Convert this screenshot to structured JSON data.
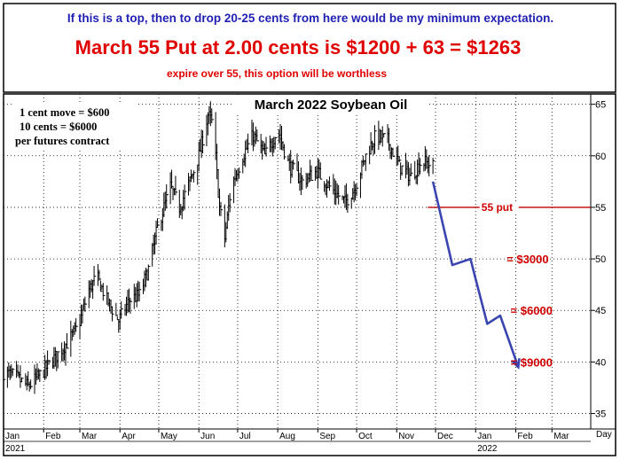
{
  "header": {
    "line1": "If this is a top, then to drop 20-25 cents from here would be my minimum expectation.",
    "line2": "March 55 Put at 2.00 cents is $1200 + 63 = $1263",
    "line3": "expire over 55, this option will be worthless"
  },
  "notes": [
    "1 cent move = $600",
    "10 cents = $6000",
    "per futures contract"
  ],
  "colors": {
    "header_blue": "#1f1fb4",
    "header_red": "#e00000",
    "projection": "#3a45b0",
    "put_line": "#c00000",
    "bars": "#000000"
  },
  "chart_data": {
    "type": "ohlc",
    "title": "March 2022 Soybean Oil",
    "x_axis_label": "Day",
    "x_tick_labels": [
      "Jan",
      "Feb",
      "Mar",
      "Apr",
      "May",
      "Jun",
      "Jul",
      "Aug",
      "Sep",
      "Oct",
      "Nov",
      "Dec",
      "Jan",
      "Feb",
      "Mar"
    ],
    "year_labels": [
      "2021",
      "2022"
    ],
    "y_ticks": [
      35,
      40,
      45,
      50,
      55,
      60,
      65
    ],
    "ylim": [
      33.5,
      66
    ],
    "xlim": [
      "2021-01-01",
      "2022-03-31"
    ],
    "grid": true,
    "put_line": {
      "y": 55,
      "x_start": "2021-11-25",
      "x_end": "2022-03-31",
      "label": "55 put"
    },
    "price_path": [
      {
        "date": "2021-01-01",
        "close": 39.0
      },
      {
        "date": "2021-01-10",
        "close": 38.6
      },
      {
        "date": "2021-01-20",
        "close": 37.6
      },
      {
        "date": "2021-01-31",
        "close": 39.0
      },
      {
        "date": "2021-02-10",
        "close": 40.5
      },
      {
        "date": "2021-02-20",
        "close": 42.0
      },
      {
        "date": "2021-02-28",
        "close": 43.5
      },
      {
        "date": "2021-03-08",
        "close": 47.0
      },
      {
        "date": "2021-03-14",
        "close": 48.3
      },
      {
        "date": "2021-03-22",
        "close": 46.0
      },
      {
        "date": "2021-03-31",
        "close": 44.0
      },
      {
        "date": "2021-04-08",
        "close": 46.0
      },
      {
        "date": "2021-04-16",
        "close": 46.5
      },
      {
        "date": "2021-04-23",
        "close": 49.0
      },
      {
        "date": "2021-04-30",
        "close": 53.0
      },
      {
        "date": "2021-05-10",
        "close": 57.0
      },
      {
        "date": "2021-05-17",
        "close": 55.0
      },
      {
        "date": "2021-05-25",
        "close": 57.5
      },
      {
        "date": "2021-06-01",
        "close": 60.0
      },
      {
        "date": "2021-06-08",
        "close": 64.0
      },
      {
        "date": "2021-06-12",
        "close": 63.0
      },
      {
        "date": "2021-06-17",
        "close": 55.0
      },
      {
        "date": "2021-06-21",
        "close": 52.0
      },
      {
        "date": "2021-06-26",
        "close": 57.0
      },
      {
        "date": "2021-07-05",
        "close": 60.0
      },
      {
        "date": "2021-07-13",
        "close": 62.0
      },
      {
        "date": "2021-07-22",
        "close": 60.0
      },
      {
        "date": "2021-08-01",
        "close": 62.5
      },
      {
        "date": "2021-08-10",
        "close": 59.0
      },
      {
        "date": "2021-08-20",
        "close": 57.5
      },
      {
        "date": "2021-08-31",
        "close": 58.5
      },
      {
        "date": "2021-09-10",
        "close": 57.0
      },
      {
        "date": "2021-09-22",
        "close": 55.5
      },
      {
        "date": "2021-09-30",
        "close": 57.0
      },
      {
        "date": "2021-10-08",
        "close": 60.0
      },
      {
        "date": "2021-10-16",
        "close": 62.0
      },
      {
        "date": "2021-10-25",
        "close": 61.5
      },
      {
        "date": "2021-11-03",
        "close": 59.0
      },
      {
        "date": "2021-11-12",
        "close": 58.0
      },
      {
        "date": "2021-11-20",
        "close": 59.5
      },
      {
        "date": "2021-11-29",
        "close": 59.0
      }
    ],
    "projection": [
      {
        "date": "2021-11-29",
        "value": 57.5
      },
      {
        "date": "2021-12-14",
        "value": 49.4
      },
      {
        "date": "2021-12-28",
        "value": 50.0
      },
      {
        "date": "2022-01-10",
        "value": 43.7
      },
      {
        "date": "2022-01-20",
        "value": 44.5
      },
      {
        "date": "2022-02-03",
        "value": 39.5
      }
    ],
    "annotations": [
      {
        "text": "= $3000",
        "y": 50
      },
      {
        "text": "= $6000",
        "y": 45
      },
      {
        "text": "= $9000",
        "y": 40
      }
    ]
  }
}
